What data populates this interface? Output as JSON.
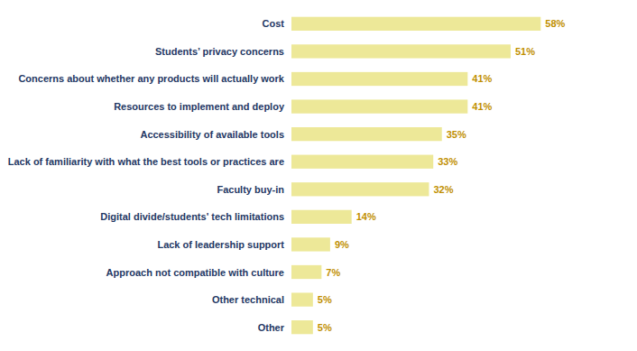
{
  "chart_data": {
    "type": "bar",
    "orientation": "horizontal",
    "categories": [
      "Other",
      "Other technical",
      "Approach not compatible with culture",
      "Lack of leadership support",
      "Digital divide/students' tech limitations",
      "Faculty buy-in",
      "Lack of familiarity with what the best tools or practices are",
      "Accessibility of available tools",
      "Resources to implement and deploy",
      "Concerns about whether any products will actually work",
      "Students’ privacy concerns",
      "Cost"
    ],
    "values": [
      5,
      5,
      7,
      9,
      14,
      32,
      33,
      35,
      41,
      41,
      51,
      58
    ],
    "value_labels": [
      "5%",
      "5%",
      "7%",
      "9%",
      "14%",
      "32%",
      "33%",
      "35%",
      "41%",
      "41%",
      "51%",
      "58%"
    ],
    "data_labels": true,
    "color": "#EDE898",
    "xlim": [
      0,
      72
    ],
    "grid": false,
    "tick_labels": "y"
  }
}
